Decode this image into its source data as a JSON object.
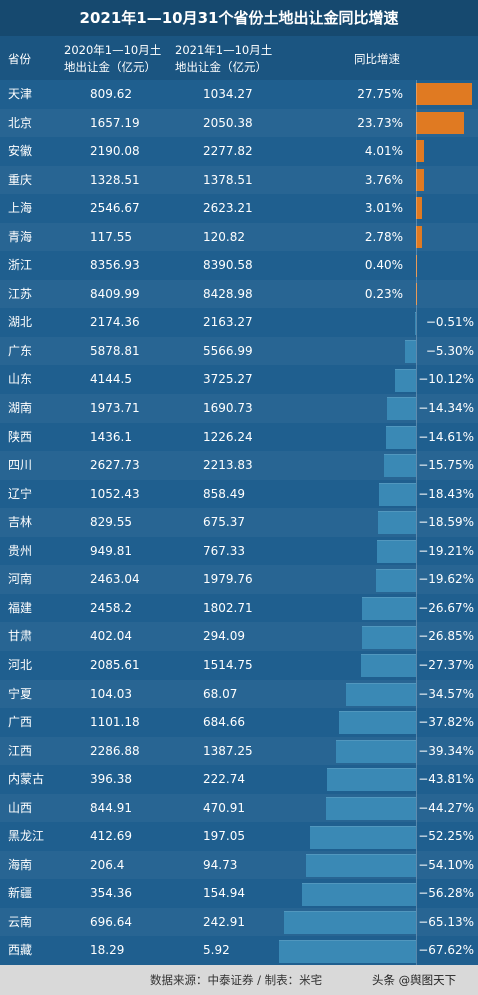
{
  "title": "2021年1—10月31个省份土地出让金同比增速",
  "headers": {
    "province": "省份",
    "c2020_line1": "2020年1—10月土",
    "c2020_line2": "地出让金（亿元）",
    "c2021_line1": "2021年1—10月土",
    "c2021_line2": "地出让金（亿元）",
    "growth": "同比增速"
  },
  "colors": {
    "positive": "#e07a22",
    "negative": "#3a89b5",
    "background": "#1f5f8f"
  },
  "footer": {
    "source": "数据来源：中泰证券 / 制表：米宅",
    "brand": "头条 @舆图天下"
  },
  "chart_data": {
    "type": "bar",
    "categories": [
      "天津",
      "北京",
      "安徽",
      "重庆",
      "上海",
      "青海",
      "浙江",
      "江苏",
      "湖北",
      "广东",
      "山东",
      "湖南",
      "陕西",
      "四川",
      "辽宁",
      "吉林",
      "贵州",
      "河南",
      "福建",
      "甘肃",
      "河北",
      "宁夏",
      "广西",
      "江西",
      "内蒙古",
      "山西",
      "黑龙江",
      "海南",
      "新疆",
      "云南",
      "西藏"
    ],
    "v2020": [
      "809.62",
      "1657.19",
      "2190.08",
      "1328.51",
      "2546.67",
      "117.55",
      "8356.93",
      "8409.99",
      "2174.36",
      "5878.81",
      "4144.5",
      "1973.71",
      "1436.1",
      "2627.73",
      "1052.43",
      "829.55",
      "949.81",
      "2463.04",
      "2458.2",
      "402.04",
      "2085.61",
      "104.03",
      "1101.18",
      "2286.88",
      "396.38",
      "844.91",
      "412.69",
      "206.4",
      "354.36",
      "696.64",
      "18.29"
    ],
    "v2021": [
      "1034.27",
      "2050.38",
      "2277.82",
      "1378.51",
      "2623.21",
      "120.82",
      "8390.58",
      "8428.98",
      "2163.27",
      "5566.99",
      "3725.27",
      "1690.73",
      "1226.24",
      "2213.83",
      "858.49",
      "675.37",
      "767.33",
      "1979.76",
      "1802.71",
      "294.09",
      "1514.75",
      "68.07",
      "684.66",
      "1387.25",
      "222.74",
      "470.91",
      "197.05",
      "94.73",
      "154.94",
      "242.91",
      "5.92"
    ],
    "growth_labels": [
      "27.75%",
      "23.73%",
      "4.01%",
      "3.76%",
      "3.01%",
      "2.78%",
      "0.40%",
      "0.23%",
      "−0.51%",
      "−5.30%",
      "−10.12%",
      "−14.34%",
      "−14.61%",
      "−15.75%",
      "−18.43%",
      "−18.59%",
      "−19.21%",
      "−19.62%",
      "−26.67%",
      "−26.85%",
      "−27.37%",
      "−34.57%",
      "−37.82%",
      "−39.34%",
      "−43.81%",
      "−44.27%",
      "−52.25%",
      "−54.10%",
      "−56.28%",
      "−65.13%",
      "−67.62%"
    ],
    "growth": [
      27.75,
      23.73,
      4.01,
      3.76,
      3.01,
      2.78,
      0.4,
      0.23,
      -0.51,
      -5.3,
      -10.12,
      -14.34,
      -14.61,
      -15.75,
      -18.43,
      -18.59,
      -19.21,
      -19.62,
      -26.67,
      -26.85,
      -27.37,
      -34.57,
      -37.82,
      -39.34,
      -43.81,
      -44.27,
      -52.25,
      -54.1,
      -56.28,
      -65.13,
      -67.62
    ]
  }
}
